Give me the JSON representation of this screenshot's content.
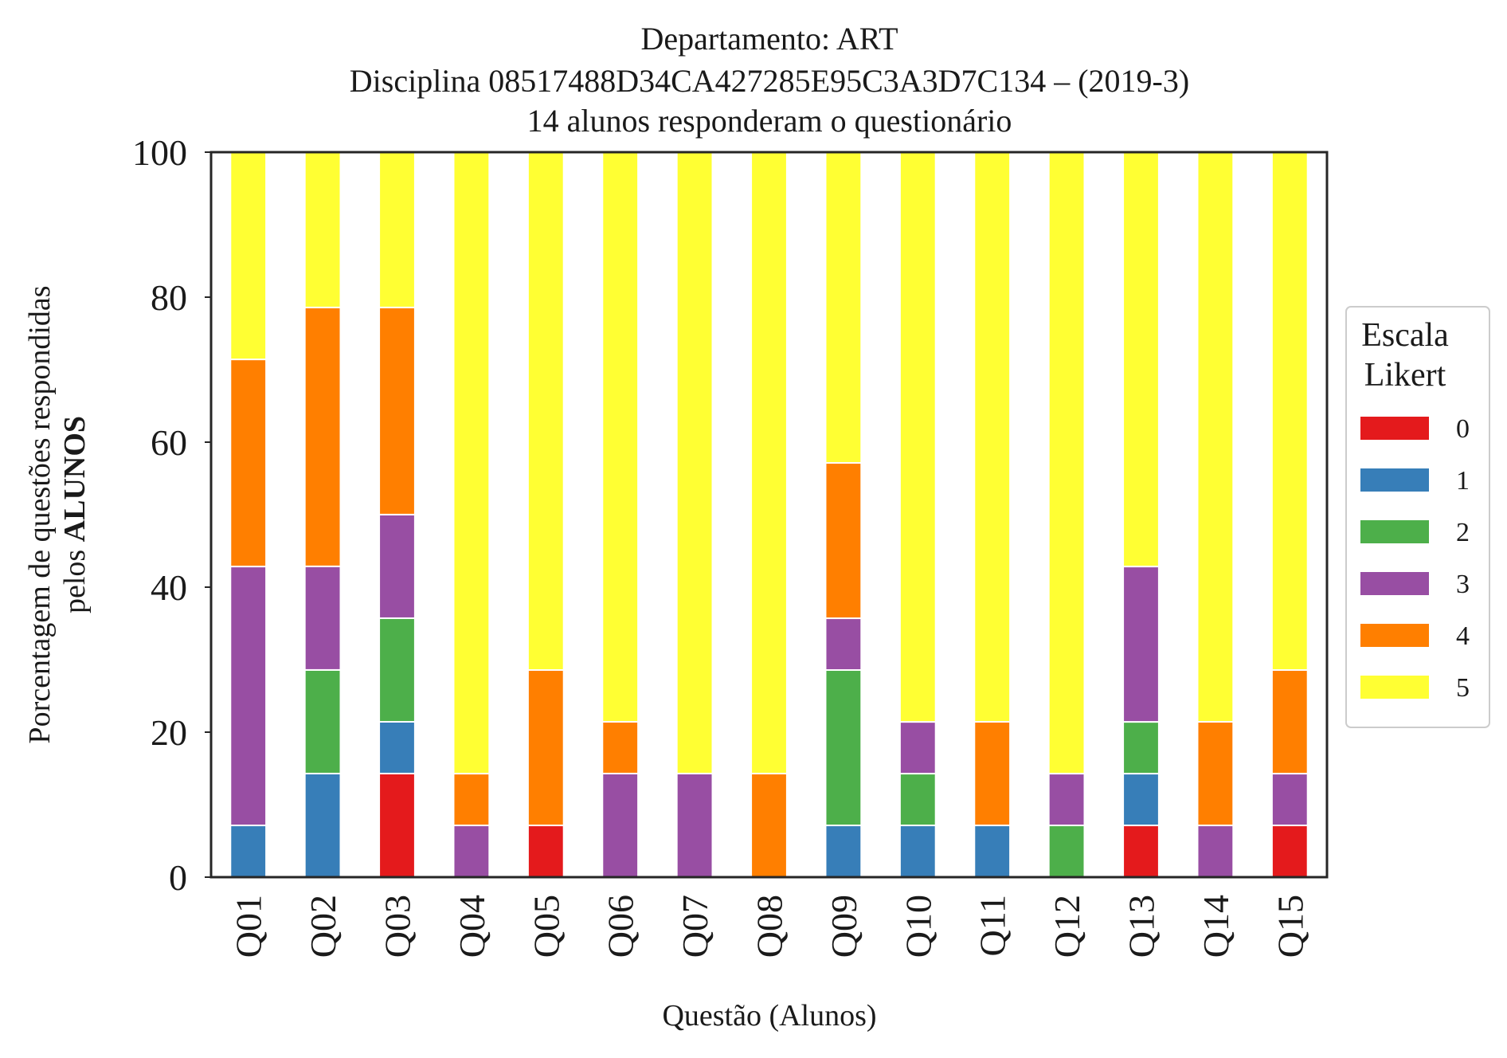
{
  "chart_data": {
    "type": "bar",
    "stacked": true,
    "title": "Departamento: ART",
    "subtitle": "Disciplina 08517488D34CA427285E95C3A3D7C134 – (2019-3)",
    "subtitle2": "14 alunos responderam o questionário",
    "xlabel": "Questão (Alunos)",
    "ylabel_line1": "Porcentagem de questões respondidas",
    "ylabel_line2_prefix": "pelos ",
    "ylabel_line2_bold": "ALUNOS",
    "ylim": [
      0,
      100
    ],
    "yticks": [
      "0",
      "20",
      "40",
      "60",
      "80",
      "100"
    ],
    "grid": false,
    "legend_position": "right",
    "legend_title_line1": "Escala",
    "legend_title_line2": "Likert",
    "categories": [
      "Q01",
      "Q02",
      "Q03",
      "Q04",
      "Q05",
      "Q06",
      "Q07",
      "Q08",
      "Q09",
      "Q10",
      "Q11",
      "Q12",
      "Q13",
      "Q14",
      "Q15"
    ],
    "series": [
      {
        "name": "0",
        "color": "#e41a1c",
        "values": [
          0,
          0,
          14.29,
          0,
          7.14,
          0,
          0,
          0,
          0,
          0,
          0,
          0,
          7.14,
          0,
          7.14
        ]
      },
      {
        "name": "1",
        "color": "#377eb8",
        "values": [
          7.14,
          14.29,
          7.14,
          0,
          0,
          0,
          0,
          0,
          7.14,
          7.14,
          7.14,
          0,
          7.14,
          0,
          0
        ]
      },
      {
        "name": "2",
        "color": "#4daf4a",
        "values": [
          0,
          14.29,
          14.29,
          0,
          0,
          0,
          0,
          0,
          21.43,
          7.14,
          0,
          7.14,
          7.14,
          0,
          0
        ]
      },
      {
        "name": "3",
        "color": "#984ea3",
        "values": [
          35.71,
          14.29,
          14.29,
          7.14,
          0,
          14.29,
          14.29,
          0,
          7.14,
          7.14,
          0,
          7.14,
          21.43,
          7.14,
          7.14
        ]
      },
      {
        "name": "4",
        "color": "#ff7f00",
        "values": [
          28.57,
          35.71,
          28.57,
          7.14,
          21.43,
          7.14,
          0,
          14.29,
          21.43,
          0,
          14.29,
          0,
          0,
          14.29,
          14.29
        ]
      },
      {
        "name": "5",
        "color": "#ffff33",
        "values": [
          28.57,
          21.43,
          21.43,
          85.71,
          71.43,
          78.57,
          85.71,
          85.71,
          42.86,
          78.57,
          78.57,
          85.71,
          57.14,
          78.57,
          71.43
        ]
      }
    ]
  }
}
